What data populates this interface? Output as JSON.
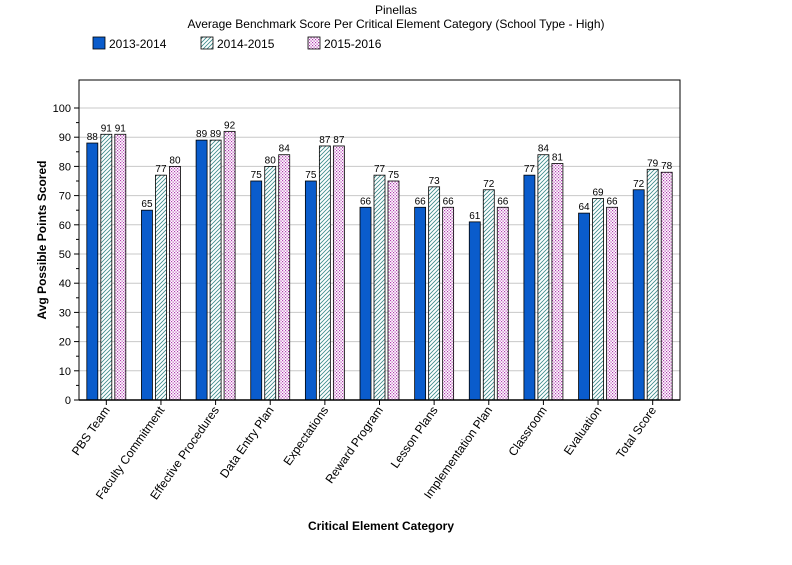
{
  "chart_data": {
    "type": "bar",
    "title": "Pinellas",
    "subtitle": "Average Benchmark Score Per Critical Element Category (School Type - High)",
    "xlabel": "Critical Element Category",
    "ylabel": "Avg Possible Points Scored",
    "ylim": [
      0,
      100
    ],
    "yticks": [
      0,
      10,
      20,
      30,
      40,
      50,
      60,
      70,
      80,
      90,
      100
    ],
    "grid": true,
    "legend_position": "top-left",
    "categories": [
      "PBS Team",
      "Faculty Commitment",
      "Effective Procedures",
      "Data Entry Plan",
      "Expectations",
      "Reward Program",
      "Lesson Plans",
      "Implementation Plan",
      "Classroom",
      "Evaluation",
      "Total Score"
    ],
    "series": [
      {
        "name": "2013-2014",
        "style": "solid",
        "color": "#0a5ccc",
        "values": [
          88,
          65,
          89,
          75,
          75,
          66,
          66,
          61,
          77,
          64,
          72
        ]
      },
      {
        "name": "2014-2015",
        "style": "diagonal-hatch",
        "color": "#3a8a8a",
        "values": [
          91,
          77,
          89,
          80,
          87,
          77,
          73,
          72,
          84,
          69,
          79
        ]
      },
      {
        "name": "2015-2016",
        "style": "dotted",
        "color": "#b03ab0",
        "values": [
          91,
          80,
          92,
          84,
          87,
          75,
          66,
          66,
          81,
          66,
          78
        ]
      }
    ]
  }
}
